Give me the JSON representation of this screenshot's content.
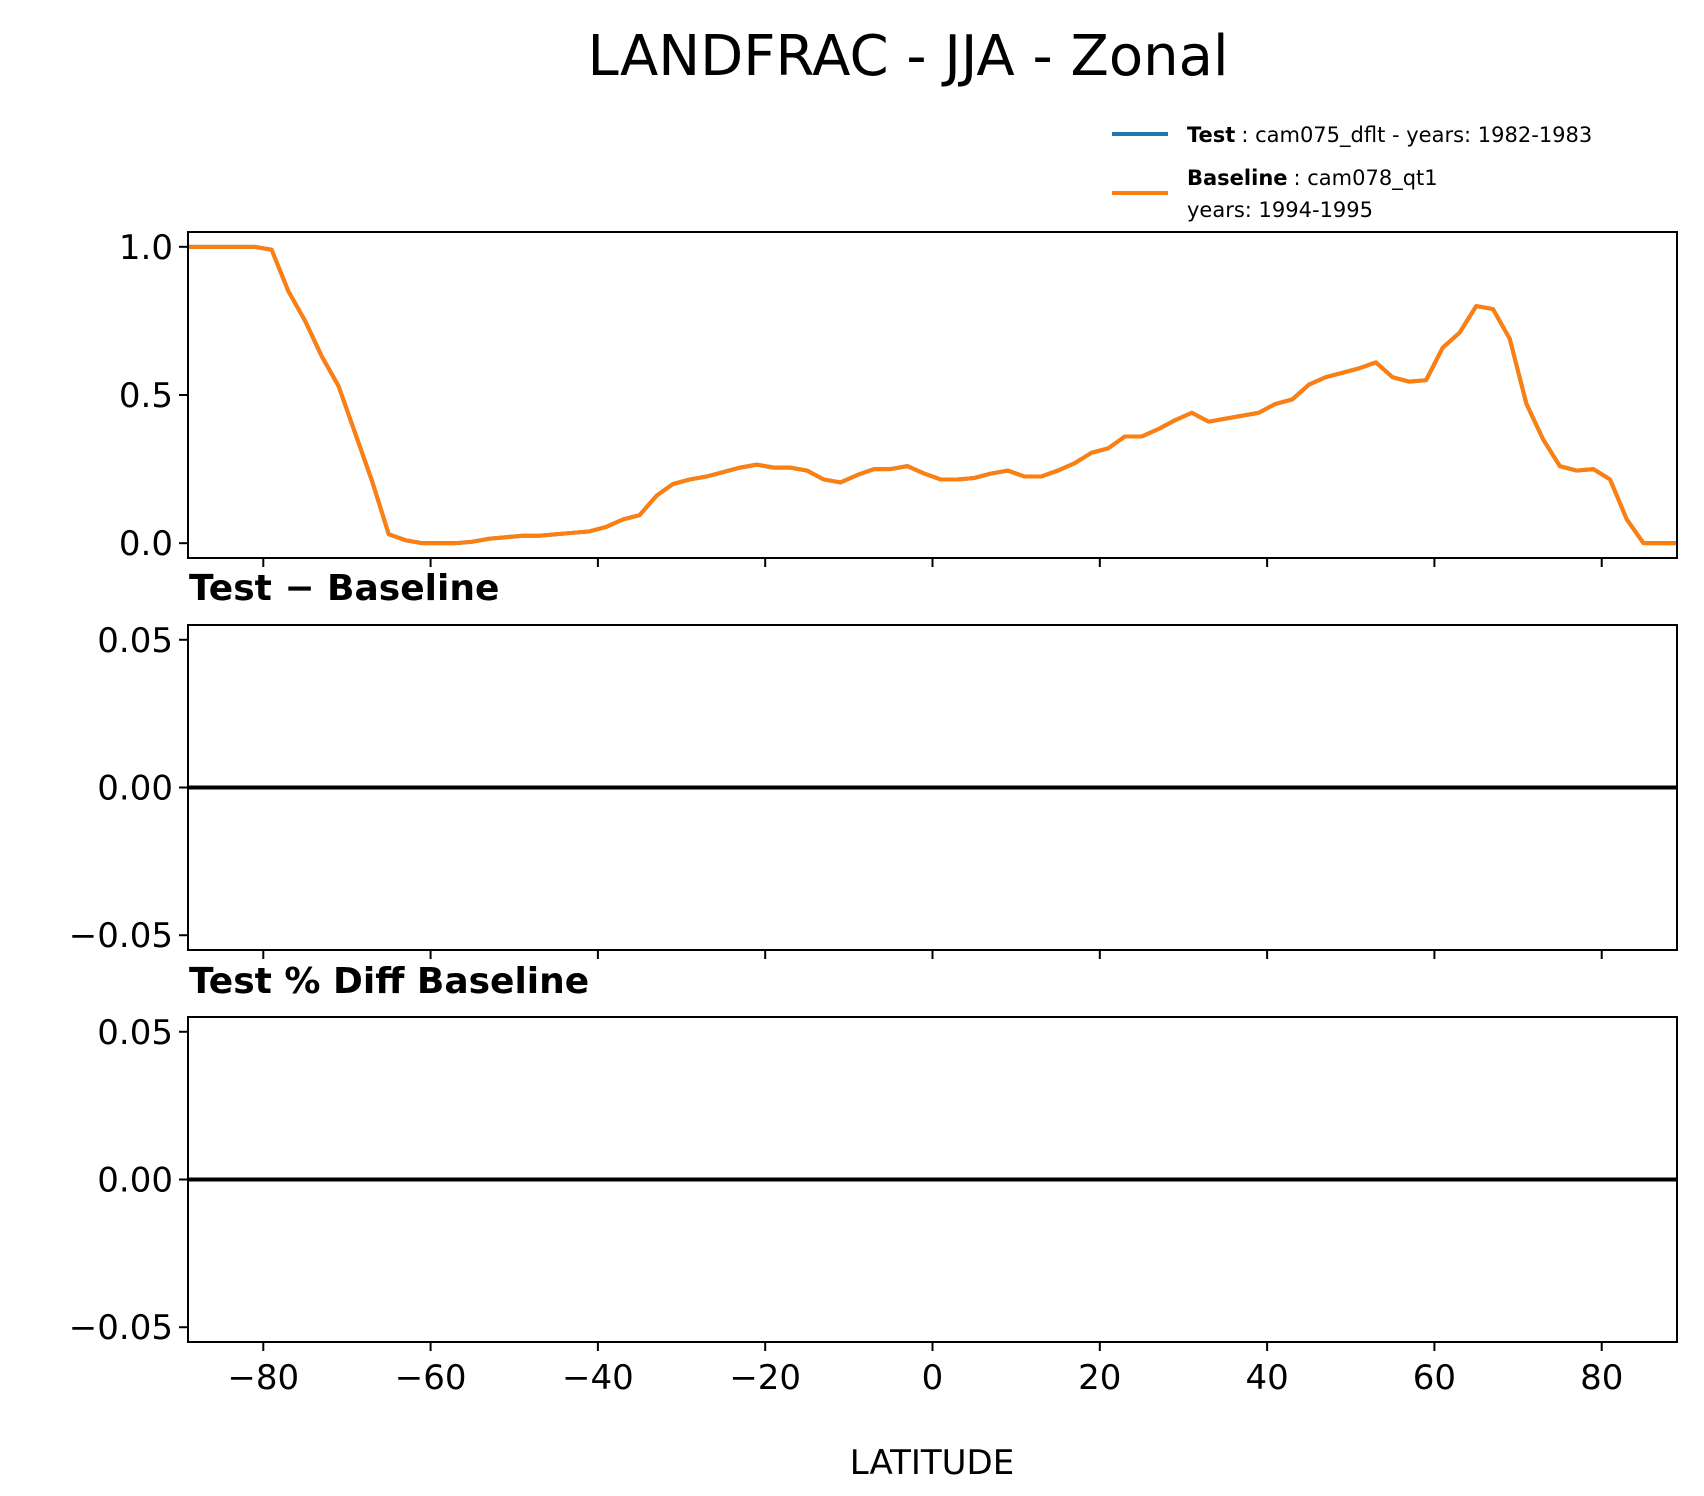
{
  "chart_data": [
    {
      "type": "line",
      "title": "LANDFRAC - JJA - Zonal",
      "xlabel": "LATITUDE",
      "ylabel": "",
      "xlim": [
        -89,
        89
      ],
      "ylim": [
        -0.05,
        1.05
      ],
      "yticks": [
        "1.0",
        "0.5",
        "0.0"
      ],
      "ytick_values": [
        1.0,
        0.5,
        0.0
      ],
      "legend": [
        {
          "name": "Test",
          "label": ": cam075_dflt - years: 1982-1983",
          "color": "#1f77b4"
        },
        {
          "name": "Baseline",
          "label": ": cam078_qt1",
          "label2": "years: 1994-1995",
          "color": "#ff7f0e"
        }
      ],
      "x": [
        -89,
        -87,
        -85,
        -83,
        -81,
        -79,
        -77,
        -75,
        -73,
        -71,
        -69,
        -67,
        -65,
        -63,
        -61,
        -59,
        -57,
        -55,
        -53,
        -51,
        -49,
        -47,
        -45,
        -43,
        -41,
        -39,
        -37,
        -35,
        -33,
        -31,
        -29,
        -27,
        -25,
        -23,
        -21,
        -19,
        -17,
        -15,
        -13,
        -11,
        -9,
        -7,
        -5,
        -3,
        -1,
        1,
        3,
        5,
        7,
        9,
        11,
        13,
        15,
        17,
        19,
        21,
        23,
        25,
        27,
        29,
        31,
        33,
        35,
        37,
        39,
        41,
        43,
        45,
        47,
        49,
        51,
        53,
        55,
        57,
        59,
        61,
        63,
        65,
        67,
        69,
        71,
        73,
        75,
        77,
        79,
        81,
        83,
        85,
        87,
        89
      ],
      "series": [
        {
          "name": "Test",
          "color": "#1f77b4",
          "values": [
            1.0,
            1.0,
            1.0,
            1.0,
            1.0,
            0.99,
            0.85,
            0.75,
            0.63,
            0.53,
            0.37,
            0.21,
            0.03,
            0.01,
            0.0,
            0.0,
            0.0,
            0.005,
            0.015,
            0.02,
            0.025,
            0.025,
            0.03,
            0.035,
            0.04,
            0.055,
            0.08,
            0.095,
            0.16,
            0.2,
            0.215,
            0.225,
            0.24,
            0.255,
            0.265,
            0.255,
            0.255,
            0.245,
            0.215,
            0.205,
            0.23,
            0.25,
            0.25,
            0.26,
            0.235,
            0.215,
            0.215,
            0.22,
            0.235,
            0.245,
            0.225,
            0.225,
            0.245,
            0.27,
            0.305,
            0.32,
            0.36,
            0.36,
            0.385,
            0.415,
            0.44,
            0.41,
            0.42,
            0.43,
            0.44,
            0.47,
            0.485,
            0.535,
            0.56,
            0.575,
            0.59,
            0.61,
            0.56,
            0.545,
            0.55,
            0.66,
            0.71,
            0.8,
            0.79,
            0.69,
            0.47,
            0.35,
            0.26,
            0.245,
            0.25,
            0.215,
            0.08,
            0.0,
            0.0,
            0.0
          ]
        },
        {
          "name": "Baseline",
          "color": "#ff7f0e",
          "values": [
            1.0,
            1.0,
            1.0,
            1.0,
            1.0,
            0.99,
            0.85,
            0.75,
            0.63,
            0.53,
            0.37,
            0.21,
            0.03,
            0.01,
            0.0,
            0.0,
            0.0,
            0.005,
            0.015,
            0.02,
            0.025,
            0.025,
            0.03,
            0.035,
            0.04,
            0.055,
            0.08,
            0.095,
            0.16,
            0.2,
            0.215,
            0.225,
            0.24,
            0.255,
            0.265,
            0.255,
            0.255,
            0.245,
            0.215,
            0.205,
            0.23,
            0.25,
            0.25,
            0.26,
            0.235,
            0.215,
            0.215,
            0.22,
            0.235,
            0.245,
            0.225,
            0.225,
            0.245,
            0.27,
            0.305,
            0.32,
            0.36,
            0.36,
            0.385,
            0.415,
            0.44,
            0.41,
            0.42,
            0.43,
            0.44,
            0.47,
            0.485,
            0.535,
            0.56,
            0.575,
            0.59,
            0.61,
            0.56,
            0.545,
            0.55,
            0.66,
            0.71,
            0.8,
            0.79,
            0.69,
            0.47,
            0.35,
            0.26,
            0.245,
            0.25,
            0.215,
            0.08,
            0.0,
            0.0,
            0.0
          ]
        }
      ]
    },
    {
      "type": "line",
      "title": "Test − Baseline",
      "xlim": [
        -89,
        89
      ],
      "ylim": [
        -0.055,
        0.055
      ],
      "yticks": [
        "0.05",
        "0.00",
        "−0.05"
      ],
      "ytick_values": [
        0.05,
        0.0,
        -0.05
      ],
      "series": [
        {
          "name": "Test - Baseline",
          "color": "#000000",
          "x": [
            -89,
            89
          ],
          "values": [
            0.0,
            0.0
          ]
        }
      ]
    },
    {
      "type": "line",
      "title": "Test % Diff Baseline",
      "xlabel": "LATITUDE",
      "xlim": [
        -89,
        89
      ],
      "ylim": [
        -0.055,
        0.055
      ],
      "xticks": [
        "−80",
        "−60",
        "−40",
        "−20",
        "0",
        "20",
        "40",
        "60",
        "80"
      ],
      "xtick_values": [
        -80,
        -60,
        -40,
        -20,
        0,
        20,
        40,
        60,
        80
      ],
      "yticks": [
        "0.05",
        "0.00",
        "−0.05"
      ],
      "ytick_values": [
        0.05,
        0.0,
        -0.05
      ],
      "series": [
        {
          "name": "Test % Diff Baseline",
          "color": "#000000",
          "x": [
            -89,
            89
          ],
          "values": [
            0.0,
            0.0
          ]
        }
      ]
    }
  ]
}
